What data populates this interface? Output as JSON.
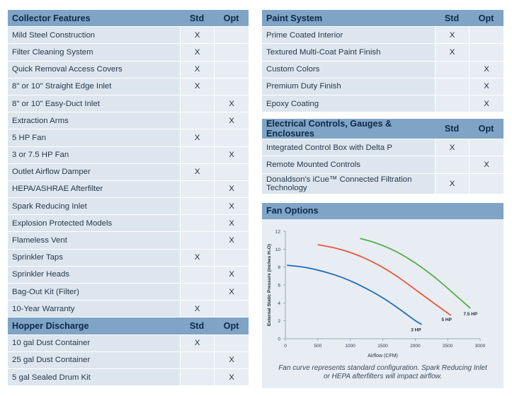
{
  "collector": {
    "header": {
      "title": "Collector Features",
      "std": "Std",
      "opt": "Opt"
    },
    "rows": [
      {
        "label": "Mild Steel Construction",
        "std": "X",
        "opt": ""
      },
      {
        "label": "Filter Cleaning System",
        "std": "X",
        "opt": ""
      },
      {
        "label": "Quick Removal Access Covers",
        "std": "X",
        "opt": ""
      },
      {
        "label": "8\" or 10\" Straight Edge Inlet",
        "std": "X",
        "opt": ""
      },
      {
        "label": "8\" or 10\" Easy-Duct Inlet",
        "std": "",
        "opt": "X"
      },
      {
        "label": "Extraction Arms",
        "std": "",
        "opt": "X"
      },
      {
        "label": "5 HP Fan",
        "std": "X",
        "opt": ""
      },
      {
        "label": "3 or 7.5 HP Fan",
        "std": "",
        "opt": "X"
      },
      {
        "label": "Outlet Airflow Damper",
        "std": "X",
        "opt": ""
      },
      {
        "label": "HEPA/ASHRAE Afterfilter",
        "std": "",
        "opt": "X"
      },
      {
        "label": "Spark Reducing Inlet",
        "std": "",
        "opt": "X"
      },
      {
        "label": "Explosion Protected Models",
        "std": "",
        "opt": "X"
      },
      {
        "label": "Flameless Vent",
        "std": "",
        "opt": "X"
      },
      {
        "label": "Sprinkler Taps",
        "std": "X",
        "opt": ""
      },
      {
        "label": "Sprinkler Heads",
        "std": "",
        "opt": "X"
      },
      {
        "label": "Bag-Out Kit (Filter)",
        "std": "",
        "opt": "X"
      },
      {
        "label": "10-Year Warranty",
        "std": "X",
        "opt": ""
      }
    ]
  },
  "hopper": {
    "header": {
      "title": "Hopper Discharge",
      "std": "Std",
      "opt": "Opt"
    },
    "rows": [
      {
        "label": "10 gal Dust Container",
        "std": "X",
        "opt": ""
      },
      {
        "label": "25 gal Dust Container",
        "std": "",
        "opt": "X"
      },
      {
        "label": "5 gal Sealed Drum Kit",
        "std": "",
        "opt": "X"
      }
    ]
  },
  "paint": {
    "header": {
      "title": "Paint System",
      "std": "Std",
      "opt": "Opt"
    },
    "rows": [
      {
        "label": "Prime Coated Interior",
        "std": "X",
        "opt": ""
      },
      {
        "label": "Textured Multi-Coat Paint Finish",
        "std": "X",
        "opt": ""
      },
      {
        "label": "Custom Colors",
        "std": "",
        "opt": "X"
      },
      {
        "label": "Premium Duty Finish",
        "std": "",
        "opt": "X"
      },
      {
        "label": "Epoxy Coating",
        "std": "",
        "opt": "X"
      }
    ]
  },
  "electrical": {
    "header": {
      "title": "Electrical Controls, Gauges & Enclosures",
      "std": "Std",
      "opt": "Opt"
    },
    "rows": [
      {
        "label": "Integrated Control Box with Delta P",
        "std": "X",
        "opt": ""
      },
      {
        "label": "Remote Mounted Controls",
        "std": "",
        "opt": "X"
      },
      {
        "label": "Donaldson's iCue™ Connected Filtration Technology",
        "std": "X",
        "opt": ""
      }
    ]
  },
  "fan": {
    "title": "Fan Options",
    "caption_line1": "Fan curve represents standard configuration. Spark Reducing Inlet",
    "caption_line2": "or HEPA afterfilters will impact airflow."
  },
  "chart_data": {
    "type": "line",
    "xlabel": "Airflow (CFM)",
    "ylabel": "External Static Pressure (inches H₂O)",
    "xlim": [
      0,
      3000
    ],
    "ylim": [
      0,
      12
    ],
    "xticks": [
      "0",
      "500",
      "1000",
      "1500",
      "2000",
      "2500",
      "3000"
    ],
    "yticks": [
      "0",
      "2",
      "4",
      "6",
      "8",
      "10",
      "12"
    ],
    "grid": false,
    "series": [
      {
        "name": "3 HP",
        "color": "#1f6bb5",
        "x": [
          25,
          300,
          600,
          900,
          1200,
          1500,
          1800,
          2000,
          2100
        ],
        "y": [
          8.2,
          8.0,
          7.5,
          6.8,
          5.8,
          4.6,
          3.1,
          2.0,
          1.6
        ]
      },
      {
        "name": "5 HP",
        "color": "#e8563a",
        "x": [
          500,
          800,
          1100,
          1400,
          1700,
          2000,
          2300,
          2550
        ],
        "y": [
          10.5,
          10.1,
          9.4,
          8.4,
          7.1,
          5.5,
          3.9,
          2.6
        ]
      },
      {
        "name": "7.5 HP",
        "color": "#55ad47",
        "x": [
          1150,
          1400,
          1700,
          2000,
          2300,
          2600,
          2850
        ],
        "y": [
          11.2,
          10.7,
          9.8,
          8.5,
          6.9,
          5.0,
          3.4
        ]
      }
    ]
  }
}
